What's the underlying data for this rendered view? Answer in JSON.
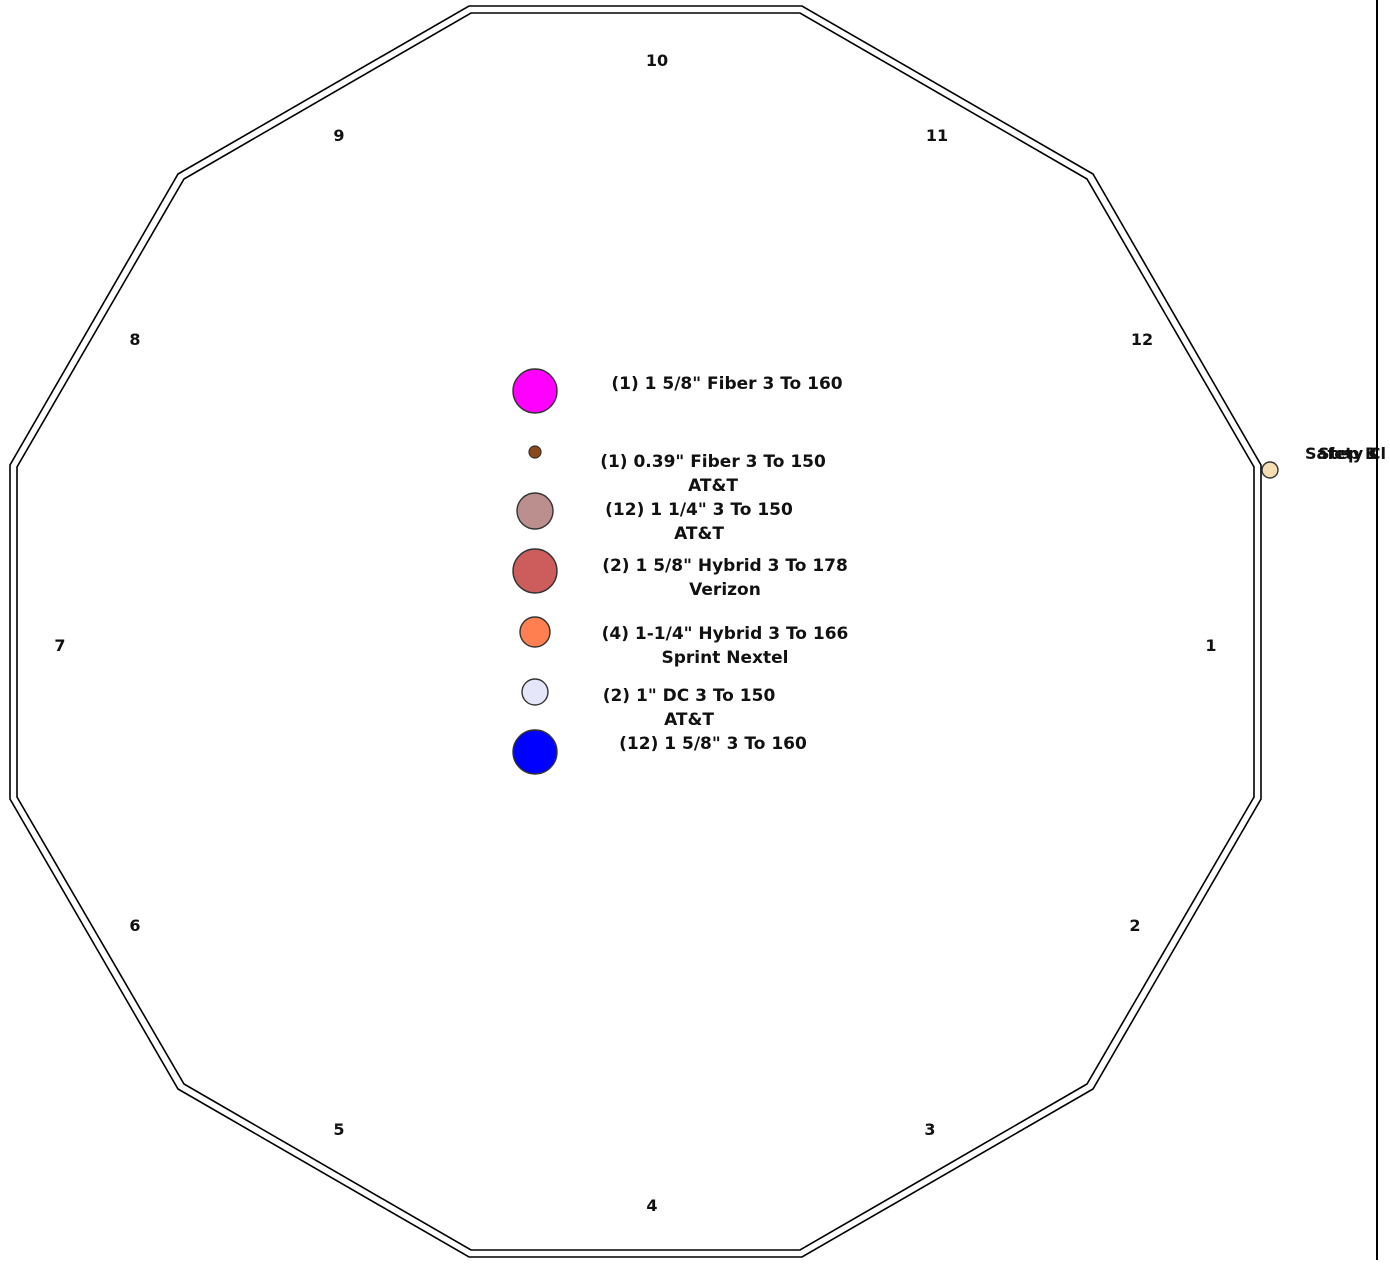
{
  "faces": [
    "1",
    "2",
    "3",
    "4",
    "5",
    "6",
    "7",
    "8",
    "9",
    "10",
    "11",
    "12"
  ],
  "legend": [
    {
      "line1": "(1) 1 5/8\" Fiber 3 To 160",
      "line2": "",
      "color": "#ff00ff",
      "size": "large"
    },
    {
      "line1": "(1) 0.39\" Fiber 3 To 150",
      "line2": "AT&T",
      "color": "#8b4a1c",
      "size": "tiny"
    },
    {
      "line1": "(12) 1 1/4\"  3 To 150",
      "line2": "AT&T",
      "color": "#bc8f8f",
      "size": "medium"
    },
    {
      "line1": "(2) 1 5/8\" Hybrid 3 To 178",
      "line2": "Verizon",
      "color": "#cd5c5c",
      "size": "large"
    },
    {
      "line1": "(4) 1-1/4\" Hybrid 3 To 166",
      "line2": "Sprint Nextel",
      "color": "#ff7f50",
      "size": "small"
    },
    {
      "line1": "(2) 1\" DC 3 To 150",
      "line2": "AT&T",
      "color": "#e6e6fa",
      "size": "small"
    },
    {
      "line1": "(12) 1 5/8\"   3 To 160",
      "line2": "",
      "color": "#0000ff",
      "size": "large"
    }
  ],
  "safety": {
    "label_a": "Safety Cl",
    "label_b": "Step B",
    "color": "#f5deb3"
  }
}
